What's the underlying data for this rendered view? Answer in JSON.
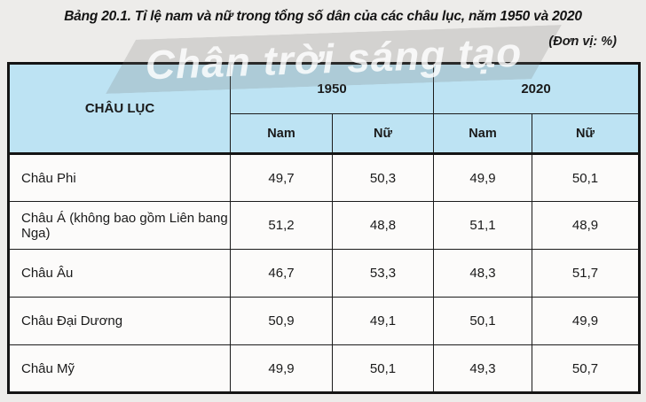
{
  "title": "Bảng 20.1. Tỉ lệ nam và nữ trong tổng số dân của các châu lục, năm 1950 và 2020",
  "unit_note": "(Đơn vị: %)",
  "watermark": "Chân trời sáng tạo",
  "colors": {
    "header_bg": "#bde3f3",
    "border": "#1b1b1b",
    "watermark_text": "#ffffff"
  },
  "table": {
    "corner_header": "CHÂU LỤC",
    "year_groups": [
      {
        "label": "1950"
      },
      {
        "label": "2020"
      }
    ],
    "sub_headers": [
      "Nam",
      "Nữ",
      "Nam",
      "Nữ"
    ],
    "rows": [
      {
        "continent": "Châu Phi",
        "values": [
          "49,7",
          "50,3",
          "49,9",
          "50,1"
        ]
      },
      {
        "continent": "Châu Á (không bao gồm Liên bang Nga)",
        "values": [
          "51,2",
          "48,8",
          "51,1",
          "48,9"
        ]
      },
      {
        "continent": "Châu Âu",
        "values": [
          "46,7",
          "53,3",
          "48,3",
          "51,7"
        ]
      },
      {
        "continent": "Châu Đại Dương",
        "values": [
          "50,9",
          "49,1",
          "50,1",
          "49,9"
        ]
      },
      {
        "continent": "Châu Mỹ",
        "values": [
          "49,9",
          "50,1",
          "49,3",
          "50,7"
        ]
      }
    ]
  }
}
